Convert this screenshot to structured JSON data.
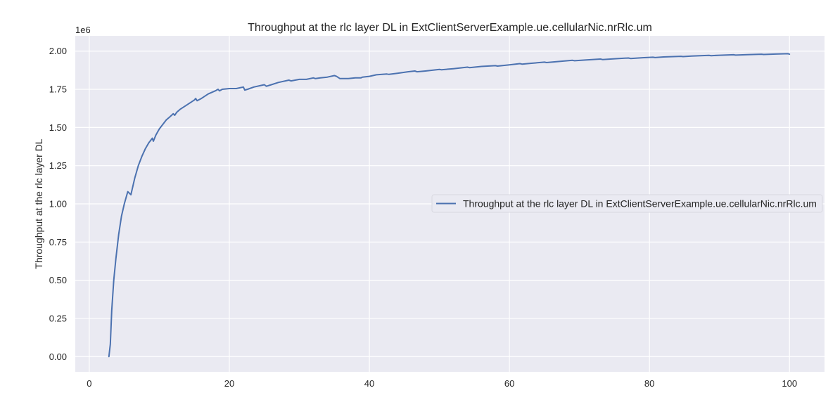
{
  "chart_data": {
    "type": "line",
    "title": "Throughput at the rlc layer DL in ExtClientServerExample.ue.cellularNic.nrRlc.um",
    "xlabel": "",
    "ylabel": "Throughput at the rlc layer DL",
    "y_offset_text": "1e6",
    "xlim": [
      -2,
      105
    ],
    "ylim": [
      -0.1,
      2.1
    ],
    "x_ticks": [
      0,
      20,
      40,
      60,
      80,
      100
    ],
    "x_tick_labels": [
      "0",
      "20",
      "40",
      "60",
      "80",
      "100"
    ],
    "y_ticks": [
      0.0,
      0.25,
      0.5,
      0.75,
      1.0,
      1.25,
      1.5,
      1.75,
      2.0
    ],
    "y_tick_labels": [
      "0.00",
      "0.25",
      "0.50",
      "0.75",
      "1.00",
      "1.25",
      "1.50",
      "1.75",
      "2.00"
    ],
    "grid": true,
    "background": "#eaeaf2",
    "legend_position": "right",
    "series": [
      {
        "name": "Throughput at the rlc layer DL in ExtClientServerExample.ue.cellularNic.nrRlc.um",
        "color": "#4c72b0",
        "x": [
          2.8,
          3.0,
          3.2,
          3.5,
          3.8,
          4.2,
          4.6,
          5.0,
          5.5,
          5.95,
          6.1,
          6.5,
          7.0,
          7.5,
          8.0,
          8.5,
          9.0,
          9.15,
          9.5,
          10.0,
          10.5,
          11.0,
          11.5,
          12.0,
          12.2,
          12.5,
          13.0,
          14.0,
          15.0,
          15.2,
          15.4,
          16.0,
          17.0,
          18.0,
          18.4,
          18.6,
          19.0,
          20.0,
          20.5,
          21.0,
          21.5,
          22.0,
          22.2,
          22.6,
          23.5,
          25.0,
          25.3,
          26.0,
          27.0,
          28.5,
          28.8,
          30.0,
          31.0,
          32.0,
          32.3,
          33.0,
          34.0,
          35.0,
          35.3,
          35.8,
          36.5,
          37.0,
          38.0,
          38.8,
          39.0,
          40.0,
          41.0,
          42.5,
          42.8,
          44.0,
          45.5,
          46.5,
          46.8,
          48.0,
          50.0,
          50.3,
          52.0,
          54.0,
          54.3,
          56.0,
          58.0,
          58.3,
          60.0,
          61.5,
          61.8,
          63.0,
          65.0,
          65.3,
          67.0,
          69.0,
          69.3,
          71.0,
          73.0,
          73.3,
          75.0,
          77.0,
          77.3,
          79.0,
          80.5,
          80.8,
          82.0,
          84.5,
          84.8,
          86.0,
          88.5,
          88.8,
          90.0,
          92.0,
          92.3,
          94.0,
          96.0,
          96.3,
          98.0,
          99.8,
          100.0
        ],
        "y": [
          0.0,
          0.08,
          0.3,
          0.5,
          0.64,
          0.8,
          0.92,
          1.0,
          1.08,
          1.06,
          1.09,
          1.17,
          1.25,
          1.31,
          1.36,
          1.4,
          1.43,
          1.41,
          1.45,
          1.49,
          1.52,
          1.55,
          1.57,
          1.59,
          1.58,
          1.6,
          1.62,
          1.65,
          1.68,
          1.69,
          1.675,
          1.69,
          1.72,
          1.74,
          1.75,
          1.74,
          1.75,
          1.755,
          1.755,
          1.755,
          1.76,
          1.765,
          1.745,
          1.75,
          1.765,
          1.78,
          1.77,
          1.78,
          1.795,
          1.81,
          1.805,
          1.815,
          1.815,
          1.825,
          1.82,
          1.825,
          1.83,
          1.84,
          1.835,
          1.82,
          1.82,
          1.82,
          1.825,
          1.825,
          1.83,
          1.835,
          1.845,
          1.85,
          1.848,
          1.855,
          1.865,
          1.87,
          1.865,
          1.87,
          1.88,
          1.878,
          1.885,
          1.895,
          1.892,
          1.9,
          1.905,
          1.902,
          1.91,
          1.918,
          1.915,
          1.92,
          1.928,
          1.925,
          1.932,
          1.94,
          1.937,
          1.942,
          1.948,
          1.945,
          1.95,
          1.955,
          1.952,
          1.957,
          1.96,
          1.958,
          1.962,
          1.966,
          1.964,
          1.968,
          1.972,
          1.97,
          1.973,
          1.976,
          1.974,
          1.977,
          1.98,
          1.978,
          1.981,
          1.983,
          1.98
        ]
      }
    ]
  }
}
